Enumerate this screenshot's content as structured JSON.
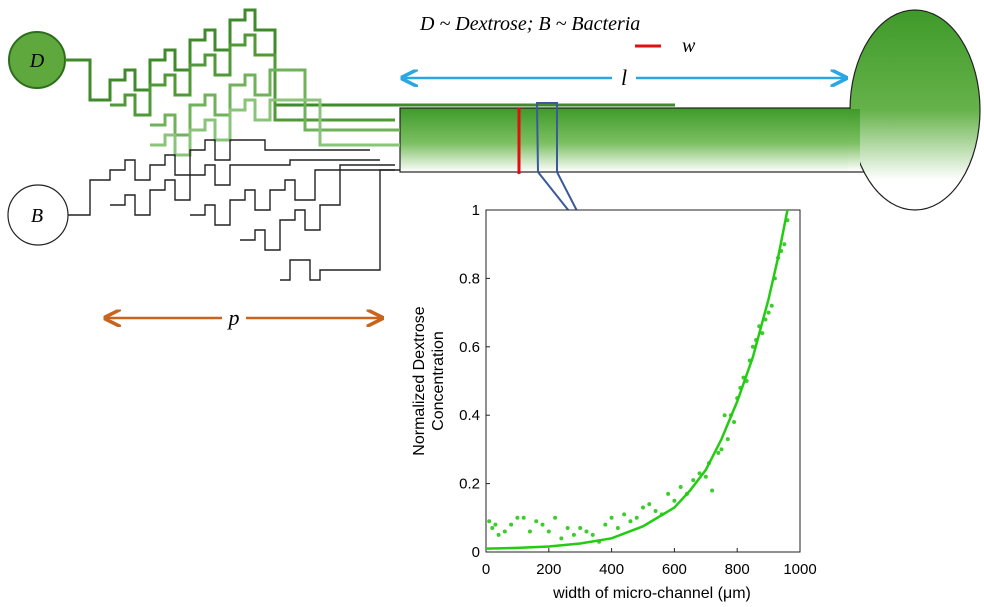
{
  "diagram": {
    "legend_text": "D ~ Dextrose;  B ~ Bacteria",
    "inlet_d": "D",
    "inlet_b": "B",
    "width_label": "w",
    "length_label": "l",
    "mixer_label": "p"
  },
  "chart_data": {
    "type": "scatter",
    "xlabel": "width of micro-channel (μm)",
    "ylabel": [
      "Normalized Dextrose",
      "Concentration"
    ],
    "xlim": [
      0,
      1000
    ],
    "ylim": [
      0,
      1
    ],
    "xticks": [
      0,
      200,
      400,
      600,
      800,
      1000
    ],
    "yticks": [
      0,
      0.2,
      0.4,
      0.6,
      0.8,
      1
    ],
    "series": [
      {
        "type": "scatter",
        "color": "#3ccc2c",
        "x": [
          10,
          20,
          30,
          40,
          60,
          80,
          100,
          120,
          140,
          160,
          180,
          200,
          220,
          240,
          260,
          280,
          300,
          320,
          340,
          360,
          380,
          400,
          420,
          440,
          460,
          480,
          500,
          520,
          540,
          560,
          580,
          600,
          620,
          640,
          660,
          680,
          700,
          710,
          720,
          740,
          750,
          760,
          770,
          780,
          790,
          800,
          810,
          820,
          830,
          840,
          850,
          860,
          870,
          880,
          890,
          900,
          910,
          920,
          930,
          940,
          950,
          960
        ],
        "values": [
          0.09,
          0.07,
          0.08,
          0.05,
          0.06,
          0.08,
          0.1,
          0.1,
          0.06,
          0.09,
          0.08,
          0.06,
          0.1,
          0.04,
          0.07,
          0.05,
          0.07,
          0.06,
          0.05,
          0.03,
          0.08,
          0.1,
          0.07,
          0.11,
          0.09,
          0.1,
          0.13,
          0.14,
          0.12,
          0.11,
          0.17,
          0.15,
          0.19,
          0.17,
          0.21,
          0.23,
          0.22,
          0.26,
          0.18,
          0.29,
          0.3,
          0.4,
          0.33,
          0.4,
          0.38,
          0.45,
          0.48,
          0.51,
          0.5,
          0.56,
          0.6,
          0.62,
          0.66,
          0.64,
          0.68,
          0.7,
          0.72,
          0.8,
          0.86,
          0.88,
          0.9,
          0.97
        ]
      },
      {
        "type": "line",
        "color": "#22cc11",
        "x": [
          0,
          100,
          200,
          300,
          400,
          500,
          600,
          650,
          700,
          750,
          800,
          850,
          900,
          930,
          960
        ],
        "values": [
          0.01,
          0.012,
          0.016,
          0.025,
          0.04,
          0.075,
          0.13,
          0.18,
          0.24,
          0.33,
          0.44,
          0.57,
          0.74,
          0.86,
          1.0
        ]
      }
    ]
  }
}
